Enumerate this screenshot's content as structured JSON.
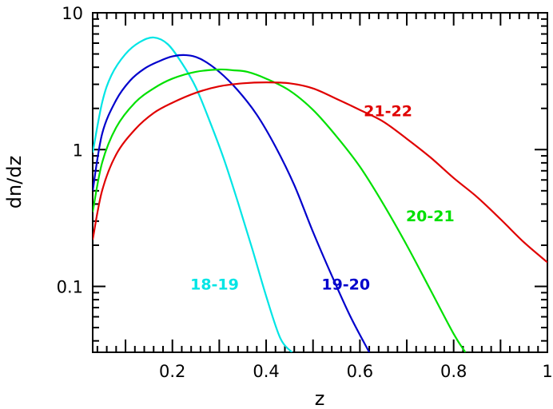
{
  "chart_data": {
    "type": "line",
    "title": "",
    "xlabel": "z",
    "ylabel": "dn/dz",
    "xlim": [
      0.03,
      1.0
    ],
    "ylim": [
      0.033,
      10
    ],
    "yscale": "log",
    "x_ticks": [
      {
        "value": 0.2,
        "label": "0.2"
      },
      {
        "value": 0.4,
        "label": "0.4"
      },
      {
        "value": 0.6,
        "label": "0.6"
      },
      {
        "value": 0.8,
        "label": "0.8"
      },
      {
        "value": 1.0,
        "label": "1"
      }
    ],
    "y_ticks": [
      {
        "value": 0.1,
        "label": "0.1"
      },
      {
        "value": 1,
        "label": "1"
      },
      {
        "value": 10,
        "label": "10"
      }
    ],
    "grid": false,
    "legend": "none",
    "series": [
      {
        "name": "18-19",
        "color": "#00e5e5",
        "label_at": {
          "x": 0.29,
          "y": 0.095
        },
        "x": [
          0.03,
          0.05,
          0.07,
          0.1,
          0.13,
          0.16,
          0.19,
          0.22,
          0.25,
          0.28,
          0.31,
          0.34,
          0.37,
          0.4,
          0.43,
          0.455
        ],
        "y": [
          0.95,
          2.2,
          3.5,
          5.0,
          6.1,
          6.6,
          5.9,
          4.3,
          2.85,
          1.6,
          0.85,
          0.41,
          0.19,
          0.085,
          0.042,
          0.033
        ]
      },
      {
        "name": "19-20",
        "color": "#0000cc",
        "label_at": {
          "x": 0.57,
          "y": 0.095
        },
        "x": [
          0.03,
          0.05,
          0.08,
          0.11,
          0.14,
          0.17,
          0.2,
          0.23,
          0.26,
          0.3,
          0.34,
          0.38,
          0.42,
          0.46,
          0.5,
          0.54,
          0.58,
          0.62
        ],
        "y": [
          0.5,
          1.3,
          2.3,
          3.2,
          3.9,
          4.4,
          4.8,
          4.9,
          4.6,
          3.7,
          2.7,
          1.8,
          1.05,
          0.55,
          0.25,
          0.12,
          0.06,
          0.033
        ]
      },
      {
        "name": "20-21",
        "color": "#00e000",
        "label_at": {
          "x": 0.75,
          "y": 0.3
        },
        "x": [
          0.03,
          0.05,
          0.08,
          0.12,
          0.16,
          0.2,
          0.25,
          0.3,
          0.33,
          0.36,
          0.4,
          0.45,
          0.5,
          0.55,
          0.6,
          0.65,
          0.7,
          0.75,
          0.8,
          0.825
        ],
        "y": [
          0.35,
          0.8,
          1.45,
          2.2,
          2.8,
          3.3,
          3.7,
          3.85,
          3.8,
          3.7,
          3.3,
          2.7,
          1.95,
          1.25,
          0.75,
          0.4,
          0.2,
          0.095,
          0.045,
          0.033
        ]
      },
      {
        "name": "21-22",
        "color": "#e00000",
        "label_at": {
          "x": 0.66,
          "y": 1.75
        },
        "x": [
          0.03,
          0.05,
          0.08,
          0.12,
          0.16,
          0.2,
          0.25,
          0.3,
          0.35,
          0.4,
          0.45,
          0.5,
          0.55,
          0.6,
          0.65,
          0.7,
          0.75,
          0.8,
          0.85,
          0.9,
          0.95,
          1.0
        ],
        "y": [
          0.22,
          0.5,
          0.92,
          1.4,
          1.85,
          2.2,
          2.6,
          2.9,
          3.05,
          3.1,
          3.05,
          2.8,
          2.35,
          1.95,
          1.6,
          1.2,
          0.88,
          0.62,
          0.45,
          0.31,
          0.21,
          0.15
        ]
      }
    ]
  }
}
